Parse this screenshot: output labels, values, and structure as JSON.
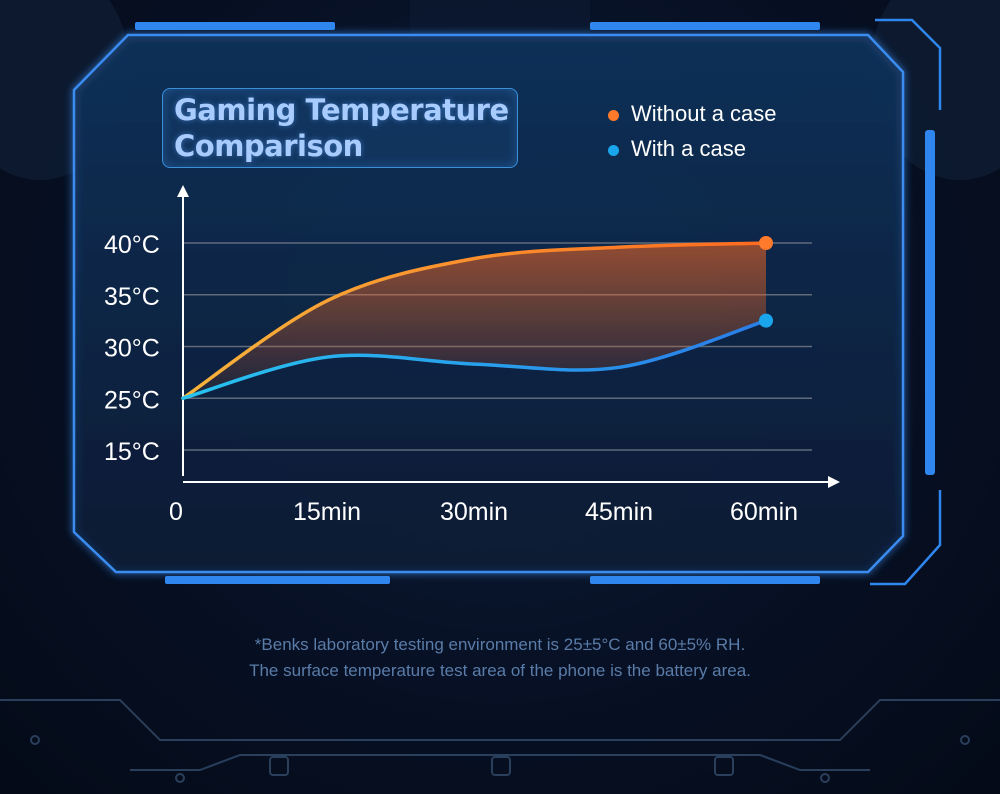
{
  "title": "Gaming Temperature Comparison",
  "title_lines": [
    "Gaming Temperature",
    "Comparison"
  ],
  "colors": {
    "without_case": "#ff7a2a",
    "with_case": "#1aa6ec",
    "frame": "#3a8cf0",
    "grid": "#5f6a7a",
    "footnote": "#5a7ca8"
  },
  "footnote": {
    "line1": "*Benks laboratory testing environment is 25±5°C and 60±5% RH.",
    "line2": "The surface temperature test area of the phone is the battery area."
  },
  "chart_data": {
    "type": "line",
    "title": "Gaming Temperature Comparison",
    "x": [
      "0",
      "15min",
      "30min",
      "45min",
      "60min"
    ],
    "x_ticks": [
      "0",
      "15min",
      "30min",
      "45min",
      "60min"
    ],
    "y_ticks": [
      "40°C",
      "35°C",
      "30°C",
      "25°C",
      "15°C"
    ],
    "y_tick_values": [
      40,
      35,
      30,
      25,
      15
    ],
    "y_grid_values": [
      40,
      35,
      30,
      25,
      20
    ],
    "ylim": [
      15,
      43
    ],
    "grid": true,
    "legend_position": "top-right",
    "series": [
      {
        "name": "Without a case",
        "color": "#ff7a2a",
        "values": [
          25,
          34.5,
          38.5,
          39.6,
          40
        ]
      },
      {
        "name": "With a case",
        "color": "#1aa6ec",
        "values": [
          25,
          29,
          28.3,
          28,
          32.5
        ]
      }
    ]
  }
}
